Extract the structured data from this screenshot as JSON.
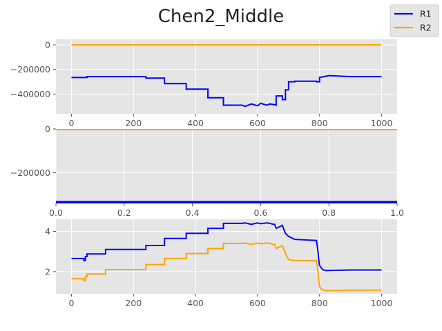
{
  "chart_data": {
    "title": "Chen2_Middle",
    "legend": {
      "placement": "top-right",
      "entries": [
        {
          "label": "R1",
          "color": "#0000ff"
        },
        {
          "label": "R2",
          "color": "#ffa500"
        }
      ]
    },
    "style": {
      "background": "#e5e5e5",
      "grid": true,
      "grid_color": "#ffffff"
    },
    "panels": [
      {
        "type": "line",
        "xlim": [
          -50,
          1050
        ],
        "ylim": [
          -560000,
          45000
        ],
        "xticks": [
          0,
          200,
          400,
          600,
          800,
          1000
        ],
        "xtick_labels": [
          "0",
          "200",
          "400",
          "600",
          "800",
          "1000"
        ],
        "yticks": [
          0,
          -200000,
          -400000
        ],
        "ytick_labels": [
          "0",
          "−200000",
          "−400000"
        ],
        "series": [
          {
            "name": "R1",
            "color": "#0000ff",
            "x": [
              0,
              50,
              50,
              240,
              240,
              300,
              300,
              370,
              370,
              440,
              440,
              490,
              490,
              550,
              560,
              580,
              600,
              610,
              630,
              640,
              650,
              655,
              660,
              660,
              680,
              680,
              690,
              690,
              700,
              700,
              720,
              720,
              790,
              790,
              800,
              800,
              830,
              900,
              1000
            ],
            "y": [
              -265000,
              -265000,
              -258000,
              -258000,
              -270000,
              -270000,
              -315000,
              -315000,
              -360000,
              -360000,
              -430000,
              -430000,
              -490000,
              -490000,
              -500000,
              -480000,
              -495000,
              -475000,
              -490000,
              -480000,
              -485000,
              -485000,
              -490000,
              -415000,
              -415000,
              -445000,
              -445000,
              -365000,
              -365000,
              -300000,
              -300000,
              -295000,
              -295000,
              -300000,
              -300000,
              -265000,
              -250000,
              -258000,
              -258000
            ]
          },
          {
            "name": "R2",
            "color": "#ffa500",
            "x": [
              0,
              1000
            ],
            "y": [
              0,
              0
            ]
          }
        ]
      },
      {
        "type": "line",
        "xlim": [
          0,
          1
        ],
        "ylim": [
          -340000,
          0
        ],
        "xticks": [
          0,
          0.2,
          0.4,
          0.6,
          0.8,
          1.0
        ],
        "xtick_labels": [
          "0.0",
          "0.2",
          "0.4",
          "0.6",
          "0.8",
          "1.0"
        ],
        "yticks": [
          0,
          -200000
        ],
        "ytick_labels": [
          "0",
          "−200000"
        ],
        "series": [
          {
            "name": "R1",
            "color": "#0000ff",
            "x": [
              0,
              1
            ],
            "y": [
              -335000,
              -335000
            ]
          },
          {
            "name": "R2",
            "color": "#ffa500",
            "x": [
              0,
              1
            ],
            "y": [
              0,
              0
            ]
          }
        ]
      },
      {
        "type": "line",
        "xlim": [
          -50,
          1050
        ],
        "ylim": [
          0.9,
          4.6
        ],
        "xticks": [
          0,
          200,
          400,
          600,
          800,
          1000
        ],
        "xtick_labels": [
          "0",
          "200",
          "400",
          "600",
          "800",
          "1000"
        ],
        "yticks": [
          2,
          4
        ],
        "ytick_labels": [
          "2",
          "4"
        ],
        "series": [
          {
            "name": "R1",
            "color": "#0000ff",
            "x": [
              0,
              40,
              40,
              45,
              45,
              50,
              50,
              110,
              110,
              240,
              240,
              300,
              300,
              370,
              370,
              440,
              440,
              490,
              490,
              550,
              560,
              580,
              600,
              610,
              630,
              640,
              650,
              655,
              660,
              660,
              680,
              680,
              690,
              690,
              700,
              700,
              720,
              720,
              790,
              790,
              795,
              798,
              800,
              805,
              810,
              820,
              900,
              1000
            ],
            "y": [
              2.65,
              2.65,
              2.55,
              2.55,
              2.75,
              2.75,
              2.88,
              2.88,
              3.1,
              3.1,
              3.3,
              3.3,
              3.65,
              3.65,
              3.9,
              3.9,
              4.15,
              4.15,
              4.4,
              4.4,
              4.42,
              4.35,
              4.42,
              4.38,
              4.42,
              4.4,
              4.35,
              4.35,
              4.15,
              4.15,
              4.3,
              4.3,
              3.9,
              3.9,
              3.75,
              3.75,
              3.6,
              3.6,
              3.55,
              3.55,
              3.0,
              2.5,
              2.3,
              2.2,
              2.1,
              2.05,
              2.08,
              2.08
            ]
          },
          {
            "name": "R2",
            "color": "#ffa500",
            "x": [
              0,
              40,
              40,
              45,
              45,
              50,
              50,
              110,
              110,
              240,
              240,
              300,
              300,
              370,
              370,
              440,
              440,
              490,
              490,
              550,
              560,
              580,
              600,
              610,
              630,
              640,
              650,
              655,
              660,
              660,
              680,
              680,
              690,
              690,
              700,
              700,
              720,
              720,
              790,
              790,
              795,
              798,
              800,
              805,
              810,
              820,
              900,
              1000
            ],
            "y": [
              1.65,
              1.65,
              1.55,
              1.55,
              1.75,
              1.75,
              1.88,
              1.88,
              2.1,
              2.1,
              2.35,
              2.35,
              2.65,
              2.65,
              2.9,
              2.9,
              3.15,
              3.15,
              3.4,
              3.4,
              3.42,
              3.35,
              3.42,
              3.38,
              3.42,
              3.4,
              3.35,
              3.35,
              3.15,
              3.15,
              3.3,
              3.3,
              2.9,
              2.9,
              2.6,
              2.6,
              2.55,
              2.55,
              2.55,
              2.55,
              2.0,
              1.5,
              1.25,
              1.15,
              1.1,
              1.05,
              1.08,
              1.08
            ]
          }
        ]
      }
    ]
  }
}
